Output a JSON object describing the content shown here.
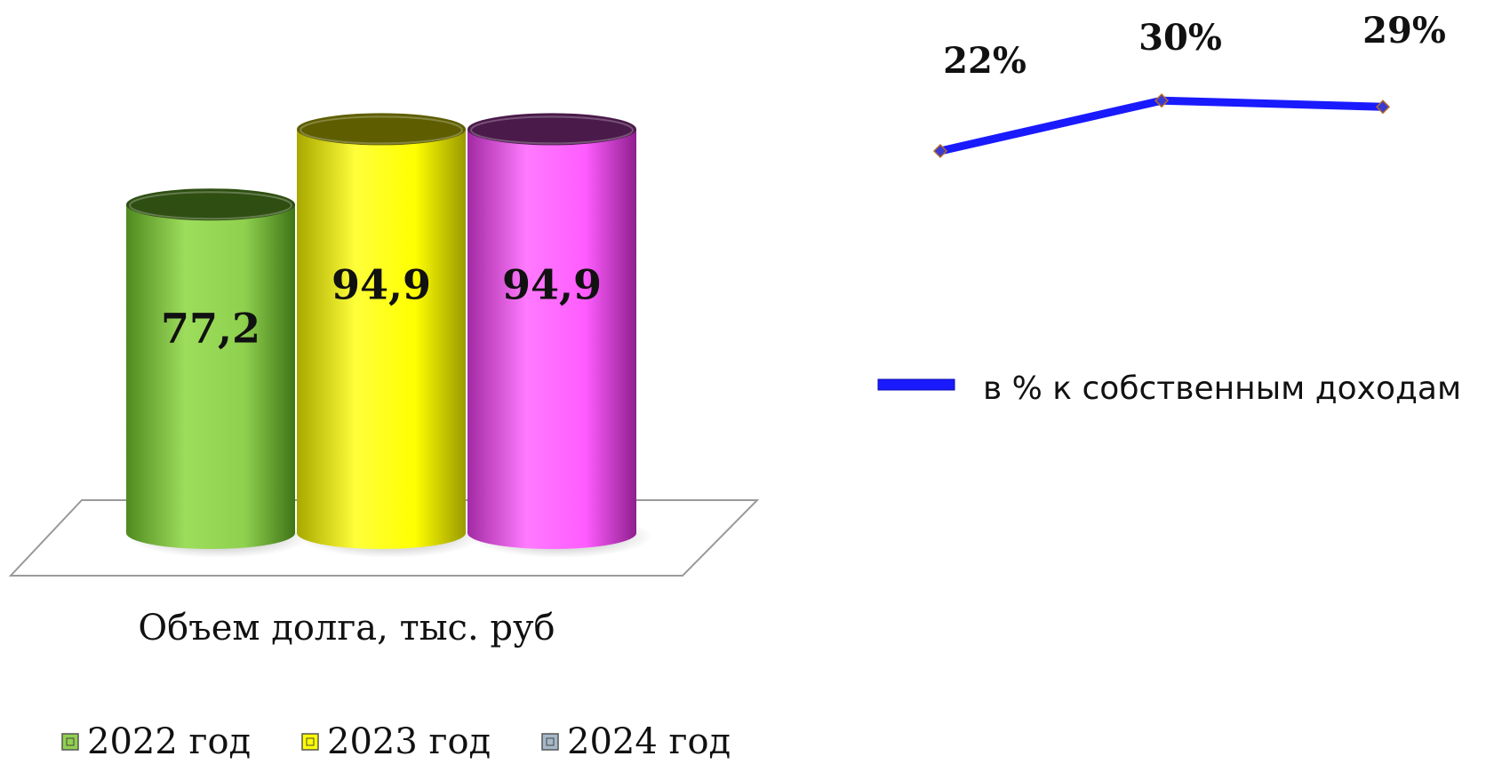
{
  "chart_data": [
    {
      "type": "bar",
      "style": "3d-cylinder",
      "xlabel": "Объем долга, тыс. руб",
      "categories": [
        "2022 год",
        "2023 год",
        "2024 год"
      ],
      "values": [
        77.2,
        94.9,
        94.9
      ],
      "value_labels": [
        "77,2",
        "94,9",
        "94,9"
      ],
      "colors": [
        "#8fd14f",
        "#ffff00",
        "#ff5cff"
      ],
      "legend": {
        "position": "bottom-left",
        "entries": [
          {
            "label": "2022 год",
            "color": "#8fd14f"
          },
          {
            "label": "2023 год",
            "color": "#ffff00"
          },
          {
            "label": "2024 год",
            "color": "#a6b8c9"
          }
        ]
      },
      "grid": false
    },
    {
      "type": "line",
      "series": [
        {
          "name": "в % к собственным доходам",
          "values": [
            22,
            30,
            29
          ],
          "value_labels": [
            "22%",
            "30%",
            "29%"
          ],
          "color": "#1a1aff",
          "marker": "diamond"
        }
      ],
      "legend": {
        "position": "right"
      },
      "grid": false
    }
  ]
}
